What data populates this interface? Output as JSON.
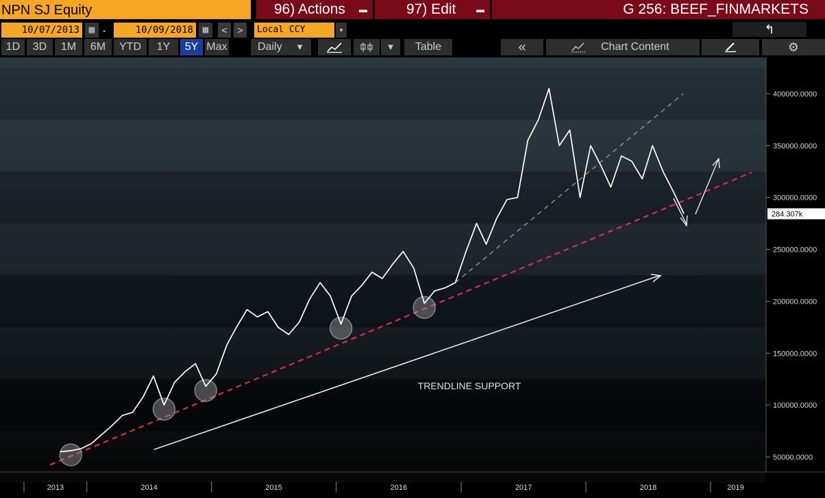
{
  "header": {
    "ticker": "NPN SJ Equity",
    "actions_label": "96) Actions",
    "edit_label": "97) Edit",
    "dropdown_glyph": "▬",
    "chart_name": "G 256: BEEF_FINMARKETS"
  },
  "date_bar": {
    "start_date": "10/07/2013",
    "end_date": "10/09/2018",
    "separator": "-",
    "currency": "Local CCY",
    "prev_glyph": "<",
    "next_glyph": ">",
    "calendar_glyph": "▦",
    "dropdown_glyph": "▾",
    "back_glyph": "↰"
  },
  "toolbar": {
    "ranges": [
      "1D",
      "3D",
      "1M",
      "6M",
      "YTD",
      "1Y",
      "5Y",
      "Max"
    ],
    "active_range": "5Y",
    "frequency": "Daily",
    "frequency_arrow": "▼",
    "table_label": "Table",
    "collapse_glyph": "«",
    "chart_content_label": "Chart Content",
    "gear_glyph": "⚙"
  },
  "colors": {
    "accent": "#f5a623",
    "menu_bg": "#7a0a18",
    "active_tab": "#1a3fa0",
    "price_line": "#ffffff",
    "trend_red": "#e0284a",
    "grey_dash": "#9a9a9a"
  },
  "chart_data": {
    "type": "line",
    "series": [
      {
        "x": [
          "2013-10",
          "2013-11",
          "2013-12",
          "2014-01",
          "2014-02",
          "2014-03",
          "2014-04",
          "2014-05",
          "2014-06",
          "2014-07",
          "2014-08",
          "2014-09",
          "2014-10",
          "2014-11",
          "2014-12",
          "2015-01",
          "2015-02",
          "2015-03",
          "2015-04",
          "2015-05",
          "2015-06",
          "2015-07",
          "2015-08",
          "2015-09",
          "2015-10",
          "2015-11",
          "2015-12",
          "2016-01",
          "2016-02",
          "2016-03",
          "2016-04",
          "2016-05",
          "2016-06",
          "2016-07",
          "2016-08",
          "2016-09",
          "2016-10",
          "2016-11",
          "2016-12",
          "2017-01",
          "2017-02",
          "2017-03",
          "2017-04",
          "2017-05",
          "2017-06",
          "2017-07",
          "2017-08",
          "2017-09",
          "2017-10",
          "2017-11",
          "2017-12",
          "2018-01",
          "2018-02",
          "2018-03",
          "2018-04",
          "2018-05",
          "2018-06",
          "2018-07",
          "2018-08",
          "2018-09",
          "2018-10"
        ],
        "y": [
          55000,
          56000,
          58000,
          63000,
          72000,
          80000,
          90000,
          93000,
          108000,
          128000,
          100000,
          122000,
          132000,
          140000,
          118000,
          130000,
          158000,
          175000,
          192000,
          185000,
          190000,
          175000,
          168000,
          180000,
          202000,
          218000,
          205000,
          178000,
          205000,
          215000,
          228000,
          222000,
          236000,
          248000,
          232000,
          198000,
          210000,
          213000,
          218000,
          248000,
          275000,
          255000,
          280000,
          298000,
          300000,
          355000,
          375000,
          405000,
          350000,
          365000,
          300000,
          350000,
          330000,
          310000,
          340000,
          335000,
          318000,
          350000,
          325000,
          305000,
          284307
        ]
      }
    ],
    "y_ticks": [
      "50000.0000",
      "100000.0000",
      "150000.0000",
      "200000.0000",
      "250000.0000",
      "300000.0000",
      "350000.0000",
      "400000.0000"
    ],
    "ylim": [
      42000,
      432000
    ],
    "x_ticks": [
      "2013",
      "2014",
      "2015",
      "2016",
      "2017",
      "2018",
      "2019"
    ],
    "last_price_label": "284.307k",
    "annotations": [
      "TRENDLINE SUPPORT"
    ],
    "support_touches": [
      "2013-11",
      "2014-08",
      "2014-12",
      "2016-01",
      "2016-09"
    ]
  }
}
